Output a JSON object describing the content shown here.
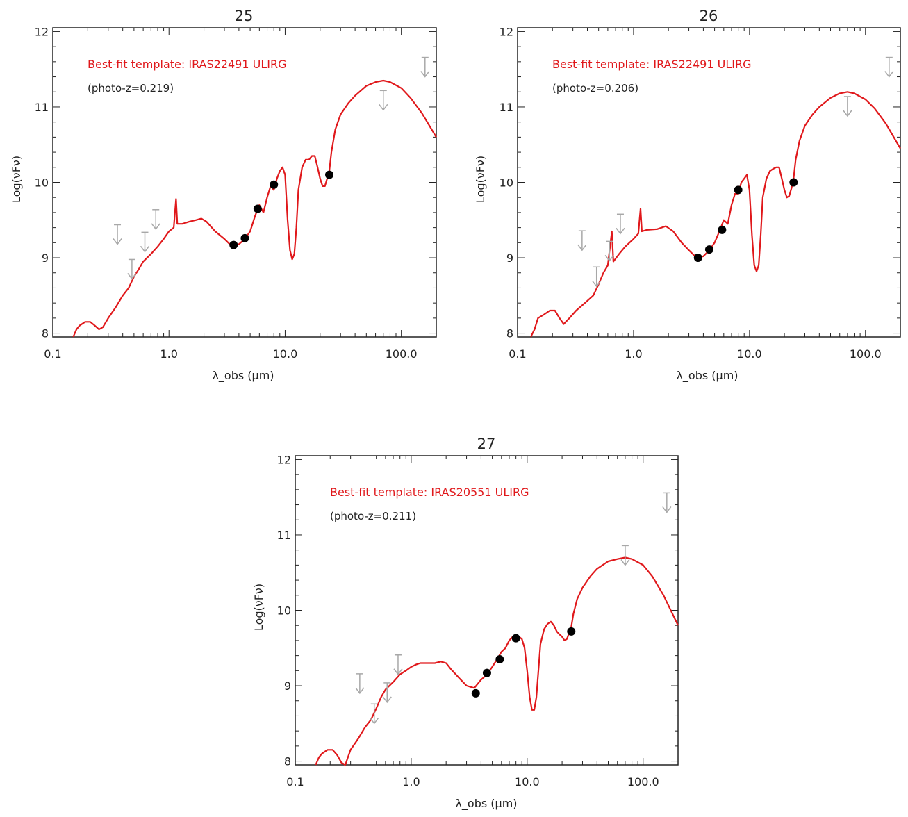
{
  "chart_data": [
    {
      "type": "line",
      "title": "25",
      "xlabel": "λ_obs (μm)",
      "ylabel": "Log(νFν)",
      "xscale": "log",
      "xlim": [
        0.1,
        200
      ],
      "ylim": [
        7.95,
        12.05
      ],
      "xticks": [
        0.1,
        1.0,
        10.0,
        100.0
      ],
      "xtick_labels": [
        "0.1",
        "1.0",
        "10.0",
        "100.0"
      ],
      "yticks": [
        8,
        9,
        10,
        11,
        12
      ],
      "ytick_labels": [
        "8",
        "9",
        "10",
        "11",
        "12"
      ],
      "annotations": [
        "Best-fit template: IRAS22491 ULIRG",
        "(photo-z=0.219)"
      ],
      "colors": {
        "template": "#e0181b",
        "detections": "#000000",
        "upper_limits": "#a8a8a8"
      },
      "template_curve": [
        [
          0.15,
          7.95
        ],
        [
          0.16,
          8.05
        ],
        [
          0.17,
          8.1
        ],
        [
          0.19,
          8.15
        ],
        [
          0.21,
          8.15
        ],
        [
          0.23,
          8.1
        ],
        [
          0.25,
          8.05
        ],
        [
          0.27,
          8.08
        ],
        [
          0.3,
          8.2
        ],
        [
          0.35,
          8.35
        ],
        [
          0.4,
          8.5
        ],
        [
          0.45,
          8.6
        ],
        [
          0.5,
          8.75
        ],
        [
          0.55,
          8.85
        ],
        [
          0.6,
          8.95
        ],
        [
          0.7,
          9.05
        ],
        [
          0.8,
          9.15
        ],
        [
          0.9,
          9.25
        ],
        [
          1.0,
          9.35
        ],
        [
          1.1,
          9.4
        ],
        [
          1.15,
          9.78
        ],
        [
          1.18,
          9.45
        ],
        [
          1.3,
          9.45
        ],
        [
          1.5,
          9.48
        ],
        [
          1.7,
          9.5
        ],
        [
          1.9,
          9.52
        ],
        [
          2.1,
          9.48
        ],
        [
          2.5,
          9.35
        ],
        [
          3.0,
          9.25
        ],
        [
          3.5,
          9.15
        ],
        [
          4.0,
          9.18
        ],
        [
          4.5,
          9.25
        ],
        [
          5.0,
          9.35
        ],
        [
          5.5,
          9.55
        ],
        [
          6.0,
          9.7
        ],
        [
          6.5,
          9.6
        ],
        [
          7.0,
          9.8
        ],
        [
          7.5,
          9.95
        ],
        [
          8.0,
          9.9
        ],
        [
          8.5,
          10.05
        ],
        [
          9.0,
          10.15
        ],
        [
          9.5,
          10.2
        ],
        [
          10.0,
          10.1
        ],
        [
          10.5,
          9.5
        ],
        [
          11.0,
          9.1
        ],
        [
          11.5,
          8.98
        ],
        [
          12.0,
          9.05
        ],
        [
          12.5,
          9.4
        ],
        [
          13.0,
          9.9
        ],
        [
          14.0,
          10.2
        ],
        [
          15.0,
          10.3
        ],
        [
          16.0,
          10.3
        ],
        [
          17.0,
          10.35
        ],
        [
          18.0,
          10.35
        ],
        [
          19.0,
          10.2
        ],
        [
          20.0,
          10.05
        ],
        [
          21.0,
          9.95
        ],
        [
          22.0,
          9.95
        ],
        [
          23.0,
          10.05
        ],
        [
          24.0,
          10.15
        ],
        [
          25.0,
          10.4
        ],
        [
          27.0,
          10.7
        ],
        [
          30.0,
          10.9
        ],
        [
          35.0,
          11.05
        ],
        [
          40.0,
          11.15
        ],
        [
          50.0,
          11.28
        ],
        [
          60.0,
          11.33
        ],
        [
          70.0,
          11.35
        ],
        [
          80.0,
          11.33
        ],
        [
          100.0,
          11.25
        ],
        [
          120.0,
          11.12
        ],
        [
          150.0,
          10.92
        ],
        [
          200.0,
          10.6
        ]
      ],
      "detections": [
        [
          3.6,
          9.17
        ],
        [
          4.5,
          9.26
        ],
        [
          5.8,
          9.65
        ],
        [
          8.0,
          9.97
        ],
        [
          24.0,
          10.1
        ]
      ],
      "upper_limits": [
        [
          0.36,
          9.18
        ],
        [
          0.48,
          8.72
        ],
        [
          0.62,
          9.08
        ],
        [
          0.77,
          9.38
        ],
        [
          70.0,
          10.96
        ],
        [
          160.0,
          11.4
        ]
      ]
    },
    {
      "type": "line",
      "title": "26",
      "xlabel": "λ_obs (μm)",
      "ylabel": "Log(νFν)",
      "xscale": "log",
      "xlim": [
        0.1,
        200
      ],
      "ylim": [
        7.95,
        12.05
      ],
      "xticks": [
        0.1,
        1.0,
        10.0,
        100.0
      ],
      "xtick_labels": [
        "0.1",
        "1.0",
        "10.0",
        "100.0"
      ],
      "yticks": [
        8,
        9,
        10,
        11,
        12
      ],
      "ytick_labels": [
        "8",
        "9",
        "10",
        "11",
        "12"
      ],
      "annotations": [
        "Best-fit template: IRAS22491 ULIRG",
        "(photo-z=0.206)"
      ],
      "colors": {
        "template": "#e0181b",
        "detections": "#000000",
        "upper_limits": "#a8a8a8"
      },
      "template_curve": [
        [
          0.13,
          7.95
        ],
        [
          0.14,
          8.05
        ],
        [
          0.15,
          8.2
        ],
        [
          0.17,
          8.25
        ],
        [
          0.19,
          8.3
        ],
        [
          0.21,
          8.3
        ],
        [
          0.23,
          8.2
        ],
        [
          0.25,
          8.12
        ],
        [
          0.28,
          8.2
        ],
        [
          0.32,
          8.3
        ],
        [
          0.38,
          8.4
        ],
        [
          0.45,
          8.5
        ],
        [
          0.5,
          8.65
        ],
        [
          0.55,
          8.8
        ],
        [
          0.6,
          8.9
        ],
        [
          0.65,
          9.35
        ],
        [
          0.67,
          8.95
        ],
        [
          0.75,
          9.05
        ],
        [
          0.85,
          9.15
        ],
        [
          1.0,
          9.25
        ],
        [
          1.1,
          9.32
        ],
        [
          1.15,
          9.65
        ],
        [
          1.18,
          9.35
        ],
        [
          1.3,
          9.37
        ],
        [
          1.6,
          9.38
        ],
        [
          1.9,
          9.42
        ],
        [
          2.2,
          9.35
        ],
        [
          2.6,
          9.2
        ],
        [
          3.0,
          9.1
        ],
        [
          3.5,
          9.0
        ],
        [
          4.0,
          9.02
        ],
        [
          4.5,
          9.1
        ],
        [
          5.0,
          9.2
        ],
        [
          5.5,
          9.35
        ],
        [
          6.0,
          9.5
        ],
        [
          6.5,
          9.45
        ],
        [
          7.0,
          9.7
        ],
        [
          7.5,
          9.85
        ],
        [
          8.0,
          9.85
        ],
        [
          8.5,
          10.0
        ],
        [
          9.0,
          10.05
        ],
        [
          9.5,
          10.1
        ],
        [
          10.0,
          9.9
        ],
        [
          10.5,
          9.3
        ],
        [
          11.0,
          8.9
        ],
        [
          11.5,
          8.82
        ],
        [
          12.0,
          8.9
        ],
        [
          12.5,
          9.3
        ],
        [
          13.0,
          9.8
        ],
        [
          14.0,
          10.05
        ],
        [
          15.0,
          10.15
        ],
        [
          16.0,
          10.18
        ],
        [
          17.0,
          10.2
        ],
        [
          18.0,
          10.2
        ],
        [
          19.0,
          10.05
        ],
        [
          20.0,
          9.9
        ],
        [
          21.0,
          9.8
        ],
        [
          22.0,
          9.82
        ],
        [
          23.0,
          9.92
        ],
        [
          24.0,
          10.05
        ],
        [
          25.0,
          10.3
        ],
        [
          27.0,
          10.55
        ],
        [
          30.0,
          10.75
        ],
        [
          35.0,
          10.9
        ],
        [
          40.0,
          11.0
        ],
        [
          50.0,
          11.12
        ],
        [
          60.0,
          11.18
        ],
        [
          70.0,
          11.2
        ],
        [
          80.0,
          11.18
        ],
        [
          100.0,
          11.1
        ],
        [
          120.0,
          10.98
        ],
        [
          150.0,
          10.78
        ],
        [
          200.0,
          10.45
        ]
      ],
      "detections": [
        [
          3.6,
          9.0
        ],
        [
          4.5,
          9.11
        ],
        [
          5.8,
          9.37
        ],
        [
          8.0,
          9.9
        ],
        [
          24.0,
          10.0
        ]
      ],
      "upper_limits": [
        [
          0.36,
          9.1
        ],
        [
          0.48,
          8.62
        ],
        [
          0.62,
          8.96
        ],
        [
          0.77,
          9.32
        ],
        [
          70.0,
          10.88
        ],
        [
          160.0,
          11.4
        ]
      ]
    },
    {
      "type": "line",
      "title": "27",
      "xlabel": "λ_obs (μm)",
      "ylabel": "Log(νFν)",
      "xscale": "log",
      "xlim": [
        0.1,
        200
      ],
      "ylim": [
        7.95,
        12.05
      ],
      "xticks": [
        0.1,
        1.0,
        10.0,
        100.0
      ],
      "xtick_labels": [
        "0.1",
        "1.0",
        "10.0",
        "100.0"
      ],
      "yticks": [
        8,
        9,
        10,
        11,
        12
      ],
      "ytick_labels": [
        "8",
        "9",
        "10",
        "11",
        "12"
      ],
      "annotations": [
        "Best-fit template: IRAS20551 ULIRG",
        "(photo-z=0.211)"
      ],
      "colors": {
        "template": "#e0181b",
        "detections": "#000000",
        "upper_limits": "#a8a8a8"
      },
      "template_curve": [
        [
          0.15,
          7.95
        ],
        [
          0.16,
          8.05
        ],
        [
          0.17,
          8.1
        ],
        [
          0.19,
          8.15
        ],
        [
          0.21,
          8.15
        ],
        [
          0.23,
          8.08
        ],
        [
          0.25,
          7.98
        ],
        [
          0.27,
          7.95
        ],
        [
          0.3,
          8.15
        ],
        [
          0.35,
          8.3
        ],
        [
          0.4,
          8.45
        ],
        [
          0.45,
          8.55
        ],
        [
          0.5,
          8.7
        ],
        [
          0.55,
          8.85
        ],
        [
          0.6,
          8.95
        ],
        [
          0.7,
          9.05
        ],
        [
          0.8,
          9.15
        ],
        [
          0.9,
          9.2
        ],
        [
          1.0,
          9.25
        ],
        [
          1.1,
          9.28
        ],
        [
          1.2,
          9.3
        ],
        [
          1.4,
          9.3
        ],
        [
          1.6,
          9.3
        ],
        [
          1.8,
          9.32
        ],
        [
          2.0,
          9.3
        ],
        [
          2.2,
          9.22
        ],
        [
          2.6,
          9.1
        ],
        [
          3.0,
          9.0
        ],
        [
          3.5,
          8.97
        ],
        [
          4.0,
          9.08
        ],
        [
          4.5,
          9.15
        ],
        [
          5.0,
          9.25
        ],
        [
          5.5,
          9.35
        ],
        [
          6.0,
          9.45
        ],
        [
          6.5,
          9.5
        ],
        [
          7.0,
          9.6
        ],
        [
          7.5,
          9.65
        ],
        [
          8.0,
          9.62
        ],
        [
          8.5,
          9.65
        ],
        [
          9.0,
          9.62
        ],
        [
          9.5,
          9.5
        ],
        [
          10.0,
          9.2
        ],
        [
          10.5,
          8.85
        ],
        [
          11.0,
          8.68
        ],
        [
          11.5,
          8.68
        ],
        [
          12.0,
          8.85
        ],
        [
          12.5,
          9.2
        ],
        [
          13.0,
          9.55
        ],
        [
          14.0,
          9.75
        ],
        [
          15.0,
          9.82
        ],
        [
          16.0,
          9.85
        ],
        [
          17.0,
          9.8
        ],
        [
          18.0,
          9.72
        ],
        [
          19.0,
          9.68
        ],
        [
          20.0,
          9.65
        ],
        [
          21.0,
          9.6
        ],
        [
          22.0,
          9.62
        ],
        [
          23.0,
          9.7
        ],
        [
          24.0,
          9.78
        ],
        [
          25.0,
          9.95
        ],
        [
          27.0,
          10.15
        ],
        [
          30.0,
          10.3
        ],
        [
          35.0,
          10.45
        ],
        [
          40.0,
          10.55
        ],
        [
          50.0,
          10.65
        ],
        [
          60.0,
          10.68
        ],
        [
          70.0,
          10.7
        ],
        [
          80.0,
          10.68
        ],
        [
          100.0,
          10.6
        ],
        [
          120.0,
          10.45
        ],
        [
          150.0,
          10.2
        ],
        [
          200.0,
          9.8
        ]
      ],
      "detections": [
        [
          3.6,
          8.9
        ],
        [
          4.5,
          9.17
        ],
        [
          5.8,
          9.35
        ],
        [
          8.0,
          9.63
        ],
        [
          24.0,
          9.72
        ]
      ],
      "upper_limits": [
        [
          0.36,
          8.9
        ],
        [
          0.48,
          8.5
        ],
        [
          0.62,
          8.78
        ],
        [
          0.77,
          9.15
        ],
        [
          70.0,
          10.6
        ],
        [
          160.0,
          11.3
        ]
      ]
    }
  ]
}
